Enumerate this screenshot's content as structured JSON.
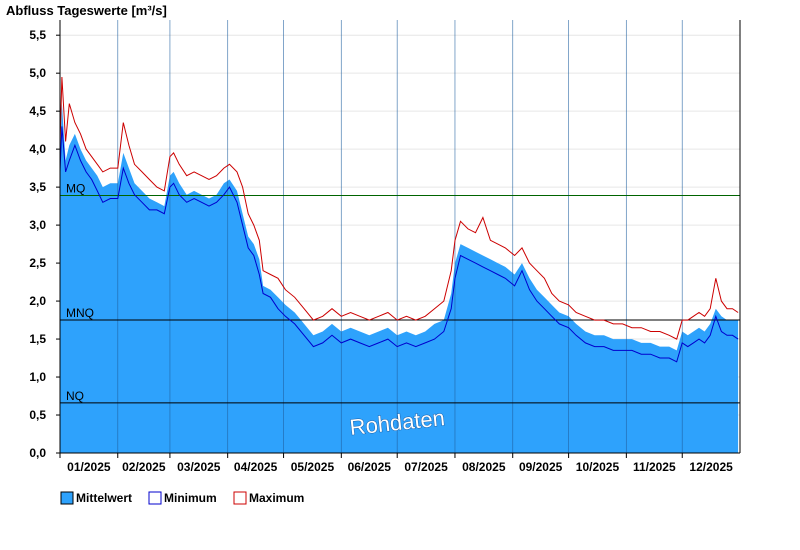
{
  "chart_data": {
    "type": "area",
    "title": "Abfluss Tageswerte [m³/s]",
    "ylim": [
      0,
      5.7
    ],
    "y_ticks": [
      "0,0",
      "0,5",
      "1,0",
      "1,5",
      "2,0",
      "2,5",
      "3,0",
      "3,5",
      "4,0",
      "4,5",
      "5,0",
      "5,5"
    ],
    "y_tick_values": [
      0,
      0.5,
      1.0,
      1.5,
      2.0,
      2.5,
      3.0,
      3.5,
      4.0,
      4.5,
      5.0,
      5.5
    ],
    "x_labels": [
      "01/2025",
      "02/2025",
      "03/2025",
      "04/2025",
      "05/2025",
      "06/2025",
      "07/2025",
      "08/2025",
      "09/2025",
      "10/2025",
      "11/2025",
      "12/2025"
    ],
    "month_starts": [
      "2025-01-01",
      "2025-02-01",
      "2025-03-01",
      "2025-04-01",
      "2025-05-01",
      "2025-06-01",
      "2025-07-01",
      "2025-08-01",
      "2025-09-01",
      "2025-10-01",
      "2025-11-01",
      "2025-12-01"
    ],
    "x_start": "2025-01-01",
    "x_end": "2025-12-31",
    "reference_lines": [
      {
        "label": "MQ",
        "value": 3.39,
        "color": "#006400"
      },
      {
        "label": "MNQ",
        "value": 1.75,
        "color": "#000000"
      },
      {
        "label": "NQ",
        "value": 0.66,
        "color": "#000000"
      }
    ],
    "series": [
      {
        "name": "Mittelwert",
        "color": "#2ea2fc",
        "dates": [
          "2025-01-01",
          "2025-01-02",
          "2025-01-04",
          "2025-01-06",
          "2025-01-09",
          "2025-01-12",
          "2025-01-15",
          "2025-01-18",
          "2025-01-21",
          "2025-01-24",
          "2025-01-28",
          "2025-02-01",
          "2025-02-04",
          "2025-02-07",
          "2025-02-10",
          "2025-02-14",
          "2025-02-18",
          "2025-02-22",
          "2025-02-26",
          "2025-03-01",
          "2025-03-03",
          "2025-03-06",
          "2025-03-10",
          "2025-03-14",
          "2025-03-18",
          "2025-03-22",
          "2025-03-26",
          "2025-03-30",
          "2025-04-02",
          "2025-04-06",
          "2025-04-09",
          "2025-04-12",
          "2025-04-15",
          "2025-04-18",
          "2025-04-20",
          "2025-04-24",
          "2025-04-28",
          "2025-05-02",
          "2025-05-07",
          "2025-05-12",
          "2025-05-17",
          "2025-05-22",
          "2025-05-27",
          "2025-06-01",
          "2025-06-06",
          "2025-06-11",
          "2025-06-16",
          "2025-06-21",
          "2025-06-26",
          "2025-07-01",
          "2025-07-06",
          "2025-07-11",
          "2025-07-16",
          "2025-07-21",
          "2025-07-26",
          "2025-07-30",
          "2025-08-01",
          "2025-08-04",
          "2025-08-08",
          "2025-08-12",
          "2025-08-16",
          "2025-08-20",
          "2025-08-24",
          "2025-08-28",
          "2025-09-02",
          "2025-09-06",
          "2025-09-10",
          "2025-09-14",
          "2025-09-18",
          "2025-09-22",
          "2025-09-26",
          "2025-10-01",
          "2025-10-05",
          "2025-10-10",
          "2025-10-15",
          "2025-10-20",
          "2025-10-25",
          "2025-10-30",
          "2025-11-04",
          "2025-11-09",
          "2025-11-14",
          "2025-11-19",
          "2025-11-24",
          "2025-11-28",
          "2025-12-01",
          "2025-12-04",
          "2025-12-07",
          "2025-12-10",
          "2025-12-13",
          "2025-12-16",
          "2025-12-19",
          "2025-12-22",
          "2025-12-25",
          "2025-12-28",
          "2025-12-31"
        ],
        "values": [
          3.9,
          4.6,
          3.85,
          4.05,
          4.2,
          4.0,
          3.85,
          3.75,
          3.65,
          3.5,
          3.55,
          3.55,
          3.95,
          3.75,
          3.55,
          3.45,
          3.35,
          3.3,
          3.25,
          3.65,
          3.7,
          3.55,
          3.4,
          3.45,
          3.4,
          3.35,
          3.4,
          3.55,
          3.6,
          3.45,
          3.15,
          2.85,
          2.75,
          2.55,
          2.2,
          2.15,
          2.05,
          1.95,
          1.85,
          1.7,
          1.55,
          1.6,
          1.7,
          1.6,
          1.65,
          1.6,
          1.55,
          1.6,
          1.65,
          1.55,
          1.6,
          1.55,
          1.6,
          1.7,
          1.75,
          2.1,
          2.5,
          2.75,
          2.7,
          2.65,
          2.6,
          2.55,
          2.5,
          2.45,
          2.35,
          2.5,
          2.3,
          2.15,
          2.05,
          1.95,
          1.85,
          1.8,
          1.7,
          1.6,
          1.55,
          1.55,
          1.5,
          1.5,
          1.5,
          1.45,
          1.45,
          1.4,
          1.4,
          1.35,
          1.6,
          1.55,
          1.6,
          1.65,
          1.6,
          1.7,
          1.9,
          1.8,
          1.75,
          1.75,
          1.75
        ]
      },
      {
        "name": "Minimum",
        "color": "#0000cd",
        "dates": [
          "2025-01-01",
          "2025-01-02",
          "2025-01-04",
          "2025-01-06",
          "2025-01-09",
          "2025-01-12",
          "2025-01-15",
          "2025-01-18",
          "2025-01-21",
          "2025-01-24",
          "2025-01-28",
          "2025-02-01",
          "2025-02-04",
          "2025-02-07",
          "2025-02-10",
          "2025-02-14",
          "2025-02-18",
          "2025-02-22",
          "2025-02-26",
          "2025-03-01",
          "2025-03-03",
          "2025-03-06",
          "2025-03-10",
          "2025-03-14",
          "2025-03-18",
          "2025-03-22",
          "2025-03-26",
          "2025-03-30",
          "2025-04-02",
          "2025-04-06",
          "2025-04-09",
          "2025-04-12",
          "2025-04-15",
          "2025-04-18",
          "2025-04-20",
          "2025-04-24",
          "2025-04-28",
          "2025-05-02",
          "2025-05-07",
          "2025-05-12",
          "2025-05-17",
          "2025-05-22",
          "2025-05-27",
          "2025-06-01",
          "2025-06-06",
          "2025-06-11",
          "2025-06-16",
          "2025-06-21",
          "2025-06-26",
          "2025-07-01",
          "2025-07-06",
          "2025-07-11",
          "2025-07-16",
          "2025-07-21",
          "2025-07-26",
          "2025-07-30",
          "2025-08-01",
          "2025-08-04",
          "2025-08-08",
          "2025-08-12",
          "2025-08-16",
          "2025-08-20",
          "2025-08-24",
          "2025-08-28",
          "2025-09-02",
          "2025-09-06",
          "2025-09-10",
          "2025-09-14",
          "2025-09-18",
          "2025-09-22",
          "2025-09-26",
          "2025-10-01",
          "2025-10-05",
          "2025-10-10",
          "2025-10-15",
          "2025-10-20",
          "2025-10-25",
          "2025-10-30",
          "2025-11-04",
          "2025-11-09",
          "2025-11-14",
          "2025-11-19",
          "2025-11-24",
          "2025-11-28",
          "2025-12-01",
          "2025-12-04",
          "2025-12-07",
          "2025-12-10",
          "2025-12-13",
          "2025-12-16",
          "2025-12-19",
          "2025-12-22",
          "2025-12-25",
          "2025-12-28",
          "2025-12-31"
        ],
        "values": [
          3.7,
          4.3,
          3.7,
          3.85,
          4.05,
          3.85,
          3.7,
          3.6,
          3.45,
          3.3,
          3.35,
          3.35,
          3.75,
          3.55,
          3.4,
          3.3,
          3.2,
          3.2,
          3.15,
          3.5,
          3.55,
          3.4,
          3.3,
          3.35,
          3.3,
          3.25,
          3.3,
          3.4,
          3.5,
          3.3,
          3.0,
          2.7,
          2.6,
          2.35,
          2.1,
          2.05,
          1.9,
          1.8,
          1.7,
          1.55,
          1.4,
          1.45,
          1.55,
          1.45,
          1.5,
          1.45,
          1.4,
          1.45,
          1.5,
          1.4,
          1.45,
          1.4,
          1.45,
          1.5,
          1.6,
          1.9,
          2.3,
          2.6,
          2.55,
          2.5,
          2.45,
          2.4,
          2.35,
          2.3,
          2.2,
          2.4,
          2.15,
          2.0,
          1.9,
          1.8,
          1.7,
          1.65,
          1.55,
          1.45,
          1.4,
          1.4,
          1.35,
          1.35,
          1.35,
          1.3,
          1.3,
          1.25,
          1.25,
          1.2,
          1.45,
          1.4,
          1.45,
          1.5,
          1.45,
          1.55,
          1.8,
          1.6,
          1.55,
          1.55,
          1.5
        ]
      },
      {
        "name": "Maximum",
        "color": "#cc0000",
        "dates": [
          "2025-01-01",
          "2025-01-02",
          "2025-01-04",
          "2025-01-06",
          "2025-01-09",
          "2025-01-12",
          "2025-01-15",
          "2025-01-18",
          "2025-01-21",
          "2025-01-24",
          "2025-01-28",
          "2025-02-01",
          "2025-02-04",
          "2025-02-07",
          "2025-02-10",
          "2025-02-14",
          "2025-02-18",
          "2025-02-22",
          "2025-02-26",
          "2025-03-01",
          "2025-03-03",
          "2025-03-06",
          "2025-03-10",
          "2025-03-14",
          "2025-03-18",
          "2025-03-22",
          "2025-03-26",
          "2025-03-30",
          "2025-04-02",
          "2025-04-06",
          "2025-04-09",
          "2025-04-12",
          "2025-04-15",
          "2025-04-18",
          "2025-04-20",
          "2025-04-24",
          "2025-04-28",
          "2025-05-02",
          "2025-05-07",
          "2025-05-12",
          "2025-05-17",
          "2025-05-22",
          "2025-05-27",
          "2025-06-01",
          "2025-06-06",
          "2025-06-11",
          "2025-06-16",
          "2025-06-21",
          "2025-06-26",
          "2025-07-01",
          "2025-07-06",
          "2025-07-11",
          "2025-07-16",
          "2025-07-21",
          "2025-07-26",
          "2025-07-30",
          "2025-08-01",
          "2025-08-04",
          "2025-08-08",
          "2025-08-12",
          "2025-08-16",
          "2025-08-20",
          "2025-08-24",
          "2025-08-28",
          "2025-09-02",
          "2025-09-06",
          "2025-09-10",
          "2025-09-14",
          "2025-09-18",
          "2025-09-22",
          "2025-09-26",
          "2025-10-01",
          "2025-10-05",
          "2025-10-10",
          "2025-10-15",
          "2025-10-20",
          "2025-10-25",
          "2025-10-30",
          "2025-11-04",
          "2025-11-09",
          "2025-11-14",
          "2025-11-19",
          "2025-11-24",
          "2025-11-28",
          "2025-12-01",
          "2025-12-04",
          "2025-12-07",
          "2025-12-10",
          "2025-12-13",
          "2025-12-16",
          "2025-12-19",
          "2025-12-22",
          "2025-12-25",
          "2025-12-28",
          "2025-12-31"
        ],
        "values": [
          4.05,
          4.95,
          4.1,
          4.6,
          4.35,
          4.2,
          4.0,
          3.9,
          3.8,
          3.7,
          3.75,
          3.75,
          4.35,
          4.05,
          3.8,
          3.7,
          3.6,
          3.5,
          3.45,
          3.9,
          3.95,
          3.8,
          3.65,
          3.7,
          3.65,
          3.6,
          3.65,
          3.75,
          3.8,
          3.7,
          3.5,
          3.15,
          3.0,
          2.8,
          2.4,
          2.35,
          2.3,
          2.15,
          2.05,
          1.9,
          1.75,
          1.8,
          1.9,
          1.8,
          1.85,
          1.8,
          1.75,
          1.8,
          1.85,
          1.75,
          1.8,
          1.75,
          1.8,
          1.9,
          2.0,
          2.4,
          2.8,
          3.05,
          2.95,
          2.9,
          3.1,
          2.8,
          2.75,
          2.7,
          2.6,
          2.7,
          2.5,
          2.4,
          2.3,
          2.1,
          2.0,
          1.95,
          1.85,
          1.8,
          1.75,
          1.75,
          1.7,
          1.7,
          1.65,
          1.65,
          1.6,
          1.6,
          1.55,
          1.5,
          1.75,
          1.75,
          1.8,
          1.85,
          1.8,
          1.9,
          2.3,
          2.0,
          1.9,
          1.9,
          1.85
        ]
      }
    ],
    "legend": [
      "Mittelwert",
      "Minimum",
      "Maximum"
    ],
    "legend_position": "bottom-left",
    "annotation": "Rohdaten"
  }
}
